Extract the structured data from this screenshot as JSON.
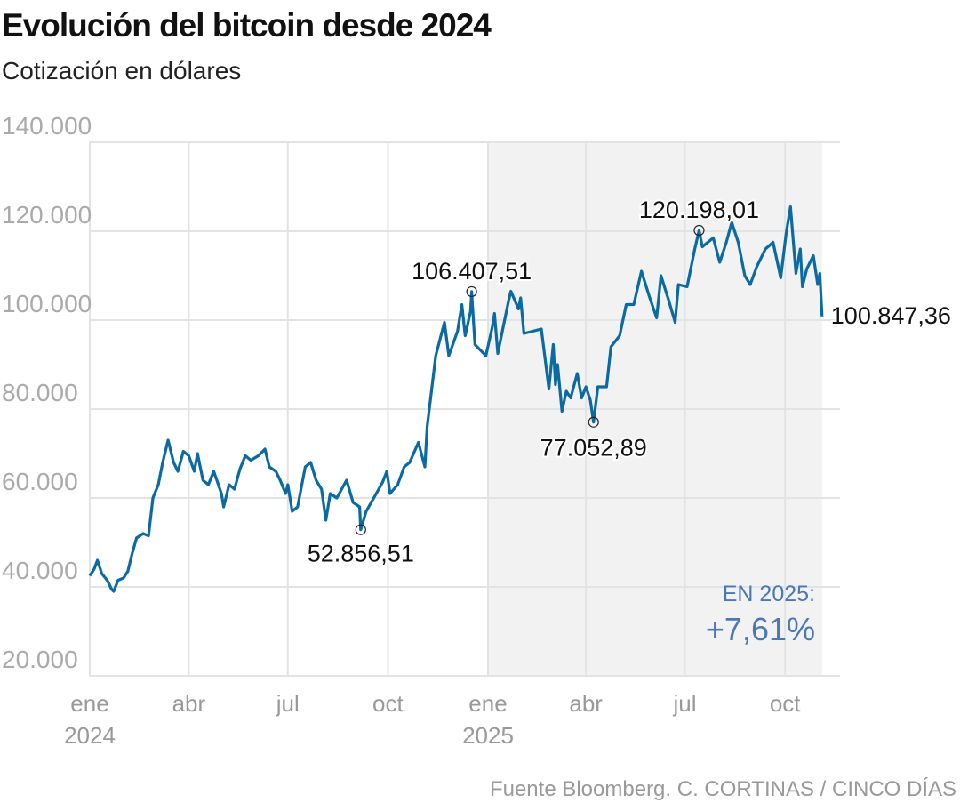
{
  "title": "Evolución del bitcoin desde 2024",
  "subtitle": "Cotización en dólares",
  "source": "Fuente Bloomberg. C. CORTINAS / CINCO DÍAS",
  "chart_data": {
    "type": "line",
    "title": "Evolución del bitcoin desde 2024",
    "subtitle": "Cotización en dólares",
    "ylim": [
      20000,
      140000
    ],
    "yticks": [
      {
        "v": 140000,
        "label": "140.000"
      },
      {
        "v": 120000,
        "label": "120.000"
      },
      {
        "v": 100000,
        "label": "100.000"
      },
      {
        "v": 80000,
        "label": "80.000"
      },
      {
        "v": 60000,
        "label": "60.000"
      },
      {
        "v": 40000,
        "label": "40.000"
      },
      {
        "v": 20000,
        "label": "20.000"
      }
    ],
    "xticks": [
      {
        "date": "2024-01-01",
        "label": "ene",
        "year": "2024"
      },
      {
        "date": "2024-04-01",
        "label": "abr"
      },
      {
        "date": "2024-07-01",
        "label": "jul"
      },
      {
        "date": "2024-10-01",
        "label": "oct"
      },
      {
        "date": "2025-01-01",
        "label": "ene",
        "year": "2025"
      },
      {
        "date": "2025-04-01",
        "label": "abr"
      },
      {
        "date": "2025-07-01",
        "label": "jul"
      },
      {
        "date": "2025-10-01",
        "label": "oct"
      }
    ],
    "grid": true,
    "highlight_period": {
      "from": "2025-01-01",
      "to": "2025-11-04",
      "color": "#f2f2f2"
    },
    "line_color": "#0a6aa1",
    "accent_color": "#4a78b5",
    "series": [
      {
        "dates": [
          "2024-01-01",
          "2024-01-05",
          "2024-01-08",
          "2024-01-12",
          "2024-01-17",
          "2024-01-21",
          "2024-01-23",
          "2024-01-27",
          "2024-02-01",
          "2024-02-05",
          "2024-02-09",
          "2024-02-13",
          "2024-02-19",
          "2024-02-24",
          "2024-02-28",
          "2024-03-04",
          "2024-03-08",
          "2024-03-13",
          "2024-03-18",
          "2024-03-22",
          "2024-03-27",
          "2024-04-01",
          "2024-04-06",
          "2024-04-09",
          "2024-04-14",
          "2024-04-19",
          "2024-04-24",
          "2024-05-01",
          "2024-05-03",
          "2024-05-08",
          "2024-05-13",
          "2024-05-18",
          "2024-05-23",
          "2024-05-28",
          "2024-06-04",
          "2024-06-10",
          "2024-06-14",
          "2024-06-20",
          "2024-06-24",
          "2024-06-29",
          "2024-07-01",
          "2024-07-05",
          "2024-07-10",
          "2024-07-17",
          "2024-07-22",
          "2024-07-27",
          "2024-08-01",
          "2024-08-05",
          "2024-08-09",
          "2024-08-15",
          "2024-08-24",
          "2024-08-30",
          "2024-09-05",
          "2024-09-06",
          "2024-09-11",
          "2024-09-18",
          "2024-09-26",
          "2024-09-30",
          "2024-10-03",
          "2024-10-10",
          "2024-10-16",
          "2024-10-21",
          "2024-10-29",
          "2024-11-04",
          "2024-11-06",
          "2024-11-12",
          "2024-11-14",
          "2024-11-22",
          "2024-11-26",
          "2024-12-04",
          "2024-12-08",
          "2024-12-11",
          "2024-12-16",
          "2024-12-17",
          "2024-12-20",
          "2024-12-30",
          "2025-01-05",
          "2025-01-07",
          "2025-01-10",
          "2025-01-20",
          "2025-01-22",
          "2025-01-29",
          "2025-01-31",
          "2025-02-03",
          "2025-02-11",
          "2025-02-19",
          "2025-02-26",
          "2025-03-02",
          "2025-03-04",
          "2025-03-06",
          "2025-03-10",
          "2025-03-14",
          "2025-03-18",
          "2025-03-24",
          "2025-03-28",
          "2025-04-01",
          "2025-04-05",
          "2025-04-08",
          "2025-04-12",
          "2025-04-20",
          "2025-04-24",
          "2025-05-02",
          "2025-05-08",
          "2025-05-15",
          "2025-05-22",
          "2025-05-29",
          "2025-06-05",
          "2025-06-09",
          "2025-06-16",
          "2025-06-22",
          "2025-06-25",
          "2025-07-03",
          "2025-07-10",
          "2025-07-14",
          "2025-07-17",
          "2025-07-27",
          "2025-08-02",
          "2025-08-08",
          "2025-08-13",
          "2025-08-19",
          "2025-08-25",
          "2025-08-30",
          "2025-09-05",
          "2025-09-13",
          "2025-09-20",
          "2025-09-27",
          "2025-10-02",
          "2025-10-06",
          "2025-10-11",
          "2025-10-15",
          "2025-10-17",
          "2025-10-21",
          "2025-10-27",
          "2025-10-31",
          "2025-11-02",
          "2025-11-04"
        ],
        "values": [
          42500,
          44000,
          46000,
          43000,
          41500,
          39500,
          39000,
          41500,
          42000,
          43500,
          47500,
          51000,
          52000,
          51500,
          60000,
          63000,
          68000,
          73000,
          68000,
          66000,
          70500,
          69500,
          66000,
          70000,
          64000,
          63000,
          66000,
          61000,
          58000,
          63000,
          62000,
          66500,
          69500,
          68500,
          69500,
          71000,
          67000,
          66000,
          64000,
          61000,
          63000,
          57000,
          58000,
          67000,
          68000,
          64000,
          62000,
          55000,
          61000,
          60000,
          64000,
          59000,
          58000,
          52856.51,
          57000,
          60000,
          63500,
          66000,
          61000,
          63000,
          67000,
          68000,
          72500,
          67000,
          76000,
          88000,
          92000,
          99500,
          92000,
          97500,
          103500,
          96500,
          102000,
          106407.51,
          94500,
          92000,
          98500,
          101500,
          92500,
          104500,
          106500,
          102500,
          105000,
          97000,
          97500,
          98000,
          84500,
          94500,
          85500,
          90000,
          79500,
          84000,
          82500,
          88000,
          82500,
          85000,
          82000,
          77052.89,
          85000,
          85000,
          94000,
          96500,
          103500,
          103500,
          111000,
          105500,
          100500,
          110000,
          104500,
          99500,
          108000,
          107500,
          116000,
          120198.01,
          116500,
          118500,
          113000,
          117500,
          122000,
          117500,
          110000,
          108000,
          112000,
          116000,
          117500,
          109500,
          119500,
          125500,
          110500,
          116000,
          107500,
          111500,
          114500,
          108000,
          110500,
          100847.36
        ]
      }
    ],
    "annotations": [
      {
        "date": "2024-09-06",
        "value": 52856.51,
        "label": "52.856,51",
        "marker": true
      },
      {
        "date": "2024-12-17",
        "value": 106407.51,
        "label": "106.407,51",
        "marker": true
      },
      {
        "date": "2025-04-08",
        "value": 77052.89,
        "label": "77.052,89",
        "marker": true
      },
      {
        "date": "2025-07-14",
        "value": 120198.01,
        "label": "120.198,01",
        "marker": true
      },
      {
        "date": "2025-11-04",
        "value": 100847.36,
        "label": "100.847,36",
        "marker": false
      }
    ],
    "callout": {
      "label": "EN 2025:",
      "value": "+7,61%"
    }
  }
}
